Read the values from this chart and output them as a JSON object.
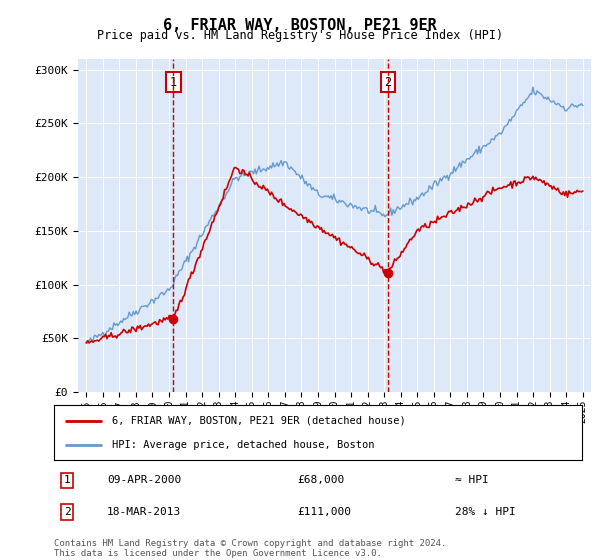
{
  "title": "6, FRIAR WAY, BOSTON, PE21 9ER",
  "subtitle": "Price paid vs. HM Land Registry's House Price Index (HPI)",
  "bg_color": "#dde8f8",
  "line1_color": "#cc0000",
  "line2_color": "#6699cc",
  "ylim": [
    0,
    310000
  ],
  "yticks": [
    0,
    50000,
    100000,
    150000,
    200000,
    250000,
    300000
  ],
  "marker1_year": 2000.27,
  "marker1_price": 68000,
  "marker1_label": "1",
  "marker2_year": 2013.21,
  "marker2_price": 111000,
  "marker2_label": "2",
  "legend_entry1": "6, FRIAR WAY, BOSTON, PE21 9ER (detached house)",
  "legend_entry2": "HPI: Average price, detached house, Boston",
  "table_row1_num": "1",
  "table_row1_date": "09-APR-2000",
  "table_row1_price": "£68,000",
  "table_row1_hpi": "≈ HPI",
  "table_row2_num": "2",
  "table_row2_date": "18-MAR-2013",
  "table_row2_price": "£111,000",
  "table_row2_hpi": "28% ↓ HPI",
  "footer": "Contains HM Land Registry data © Crown copyright and database right 2024.\nThis data is licensed under the Open Government Licence v3.0."
}
